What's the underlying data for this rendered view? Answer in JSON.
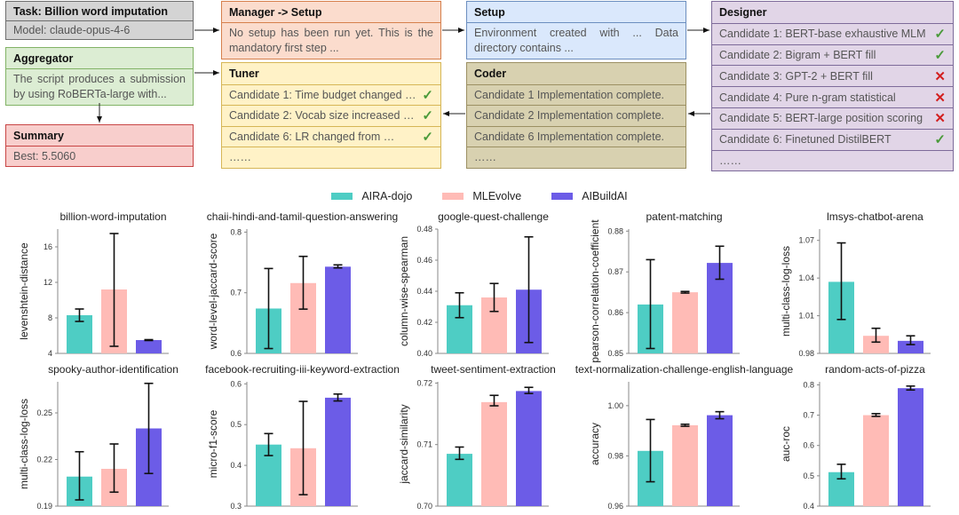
{
  "workflow": {
    "task": {
      "title": "Task:   Billion word imputation",
      "model": "Model: claude-opus-4-6"
    },
    "aggregator": {
      "title": "Aggregator",
      "text": "The script produces a submission by using RoBERTa-large with..."
    },
    "summary": {
      "title": "Summary",
      "text": "Best: 5.5060"
    },
    "manager": {
      "title": "Manager -> Setup",
      "text": "No setup has been run yet. This is the mandatory first step ..."
    },
    "setup": {
      "title": "Setup",
      "text": "Environment created with ... Data directory contains ..."
    },
    "tuner": {
      "title": "Tuner",
      "rows": [
        {
          "label": "Candidate 1: Time budget changed …",
          "status": "ok"
        },
        {
          "label": "Candidate 2: Vocab size increased …",
          "status": "ok"
        },
        {
          "label": "Candidate 6: LR changed from …",
          "status": "ok"
        },
        {
          "label": "……",
          "status": ""
        }
      ]
    },
    "coder": {
      "title": "Coder",
      "rows": [
        {
          "label": "Candidate 1 Implementation complete."
        },
        {
          "label": "Candidate 2 Implementation complete."
        },
        {
          "label": "Candidate 6 Implementation complete."
        },
        {
          "label": "……"
        }
      ]
    },
    "designer": {
      "title": "Designer",
      "rows": [
        {
          "label": "Candidate 1: BERT-base exhaustive MLM",
          "status": "ok"
        },
        {
          "label": "Candidate 2: Bigram + BERT fill",
          "status": "ok"
        },
        {
          "label": "Candidate 3: GPT-2 + BERT fill",
          "status": "bad"
        },
        {
          "label": "Candidate 4: Pure n-gram statistical",
          "status": "bad"
        },
        {
          "label": "Candidate 5: BERT-large position scoring",
          "status": "bad"
        },
        {
          "label": "Candidate 6: Finetuned DistilBERT",
          "status": "ok"
        },
        {
          "label": "……",
          "status": ""
        }
      ]
    },
    "status_marks": {
      "ok": "✓",
      "bad": "✕"
    }
  },
  "legend": [
    {
      "name": "AIRA-dojo",
      "color": "#4ecdc4"
    },
    {
      "name": "MLEvolve",
      "color": "#ffbbb6"
    },
    {
      "name": "AIBuildAI",
      "color": "#6c5ce7"
    }
  ],
  "chart_data": [
    {
      "type": "bar",
      "title": "billion-word-imputation",
      "ylabel": "levenshtein-distance",
      "ylim": [
        4,
        18
      ],
      "yticks": [
        4,
        8,
        12,
        16
      ],
      "tick_labels": [
        "4",
        "8",
        "12",
        "16"
      ],
      "series": [
        {
          "name": "AIRA-dojo",
          "value": 8.3,
          "err": [
            7.6,
            9.0
          ]
        },
        {
          "name": "MLEvolve",
          "value": 11.2,
          "err": [
            4.8,
            17.5
          ]
        },
        {
          "name": "AIBuildAI",
          "value": 5.5,
          "err": [
            5.45,
            5.55
          ]
        }
      ]
    },
    {
      "type": "bar",
      "title": "chaii-hindi-and-tamil-question-answering",
      "ylabel": "word-level-jaccard-score",
      "ylim": [
        0.6,
        0.805
      ],
      "yticks": [
        0.6,
        0.7,
        0.8
      ],
      "tick_labels": [
        "0.6",
        "0.7",
        "0.8"
      ],
      "series": [
        {
          "name": "AIRA-dojo",
          "value": 0.674,
          "err": [
            0.608,
            0.74
          ]
        },
        {
          "name": "MLEvolve",
          "value": 0.716,
          "err": [
            0.673,
            0.76
          ]
        },
        {
          "name": "AIBuildAI",
          "value": 0.743,
          "err": [
            0.741,
            0.746
          ]
        }
      ]
    },
    {
      "type": "bar",
      "title": "google-quest-challenge",
      "ylabel": "column-wise-spearman",
      "ylim": [
        0.4,
        0.48
      ],
      "yticks": [
        0.4,
        0.42,
        0.44,
        0.46,
        0.48
      ],
      "tick_labels": [
        "0.40",
        "0.42",
        "0.44",
        "0.46",
        "0.48"
      ],
      "series": [
        {
          "name": "AIRA-dojo",
          "value": 0.431,
          "err": [
            0.423,
            0.439
          ]
        },
        {
          "name": "MLEvolve",
          "value": 0.436,
          "err": [
            0.427,
            0.445
          ]
        },
        {
          "name": "AIBuildAI",
          "value": 0.441,
          "err": [
            0.407,
            0.475
          ]
        }
      ]
    },
    {
      "type": "bar",
      "title": "patent-matching",
      "ylabel": "pearson-correlation-coefficient",
      "ylim": [
        0.85,
        0.8805
      ],
      "yticks": [
        0.85,
        0.86,
        0.87,
        0.88
      ],
      "tick_labels": [
        "0.85",
        "0.86",
        "0.87",
        "0.88"
      ],
      "series": [
        {
          "name": "AIRA-dojo",
          "value": 0.862,
          "err": [
            0.8512,
            0.873
          ]
        },
        {
          "name": "MLEvolve",
          "value": 0.865,
          "err": [
            0.8648,
            0.8652
          ]
        },
        {
          "name": "AIBuildAI",
          "value": 0.8722,
          "err": [
            0.8682,
            0.8763
          ]
        }
      ]
    },
    {
      "type": "bar",
      "title": "lmsys-chatbot-arena",
      "ylabel": "multi-class-log-loss",
      "ylim": [
        0.98,
        1.079
      ],
      "yticks": [
        0.98,
        1.01,
        1.04,
        1.07
      ],
      "tick_labels": [
        "0.98",
        "1.01",
        "1.04",
        "1.07"
      ],
      "series": [
        {
          "name": "AIRA-dojo",
          "value": 1.037,
          "err": [
            1.007,
            1.068
          ]
        },
        {
          "name": "MLEvolve",
          "value": 0.994,
          "err": [
            0.989,
            1.0
          ]
        },
        {
          "name": "AIBuildAI",
          "value": 0.99,
          "err": [
            0.987,
            0.994
          ]
        }
      ]
    },
    {
      "type": "bar",
      "title": "spooky-author-identification",
      "ylabel": "multi-class-log-loss",
      "ylim": [
        0.19,
        0.27
      ],
      "yticks": [
        0.19,
        0.22,
        0.25
      ],
      "tick_labels": [
        "0.19",
        "0.22",
        "0.25"
      ],
      "series": [
        {
          "name": "AIRA-dojo",
          "value": 0.209,
          "err": [
            0.194,
            0.225
          ]
        },
        {
          "name": "MLEvolve",
          "value": 0.214,
          "err": [
            0.199,
            0.23
          ]
        },
        {
          "name": "AIBuildAI",
          "value": 0.24,
          "err": [
            0.211,
            0.269
          ]
        }
      ]
    },
    {
      "type": "bar",
      "title": "facebook-recruiting-iii-keyword-extraction",
      "ylabel": "micro-f1-score",
      "ylim": [
        0.3,
        0.605
      ],
      "yticks": [
        0.3,
        0.4,
        0.5,
        0.6
      ],
      "tick_labels": [
        "0.3",
        "0.4",
        "0.5",
        "0.6"
      ],
      "series": [
        {
          "name": "AIRA-dojo",
          "value": 0.451,
          "err": [
            0.424,
            0.478
          ]
        },
        {
          "name": "MLEvolve",
          "value": 0.442,
          "err": [
            0.328,
            0.557
          ]
        },
        {
          "name": "AIBuildAI",
          "value": 0.566,
          "err": [
            0.558,
            0.575
          ]
        }
      ]
    },
    {
      "type": "bar",
      "title": "tweet-sentiment-extraction",
      "ylabel": "jaccard-similarity",
      "ylim": [
        0.7,
        0.7202
      ],
      "yticks": [
        0.7,
        0.71,
        0.72
      ],
      "tick_labels": [
        "0.70",
        "0.71",
        "0.72"
      ],
      "series": [
        {
          "name": "AIRA-dojo",
          "value": 0.7085,
          "err": [
            0.7076,
            0.7096
          ]
        },
        {
          "name": "MLEvolve",
          "value": 0.7169,
          "err": [
            0.7163,
            0.718
          ]
        },
        {
          "name": "AIBuildAI",
          "value": 0.7187,
          "err": [
            0.7183,
            0.7193
          ]
        }
      ]
    },
    {
      "type": "bar",
      "title": "text-normalization-challenge-english-language",
      "ylabel": "accuracy",
      "ylim": [
        0.96,
        1.0095
      ],
      "yticks": [
        0.96,
        0.98,
        1.0
      ],
      "tick_labels": [
        "0.96",
        "0.98",
        "1.00"
      ],
      "series": [
        {
          "name": "AIRA-dojo",
          "value": 0.982,
          "err": [
            0.9697,
            0.9945
          ]
        },
        {
          "name": "MLEvolve",
          "value": 0.9922,
          "err": [
            0.9918,
            0.9926
          ]
        },
        {
          "name": "AIBuildAI",
          "value": 0.9962,
          "err": [
            0.9948,
            0.9976
          ]
        }
      ]
    },
    {
      "type": "bar",
      "title": "random-acts-of-pizza",
      "ylabel": "auc-roc",
      "ylim": [
        0.4,
        0.81
      ],
      "yticks": [
        0.4,
        0.5,
        0.6,
        0.7,
        0.8
      ],
      "tick_labels": [
        "0.4",
        "0.5",
        "0.6",
        "0.7",
        "0.8"
      ],
      "series": [
        {
          "name": "AIRA-dojo",
          "value": 0.512,
          "err": [
            0.49,
            0.538
          ]
        },
        {
          "name": "MLEvolve",
          "value": 0.7,
          "err": [
            0.696,
            0.705
          ]
        },
        {
          "name": "AIBuildAI",
          "value": 0.789,
          "err": [
            0.783,
            0.796
          ]
        }
      ]
    }
  ]
}
